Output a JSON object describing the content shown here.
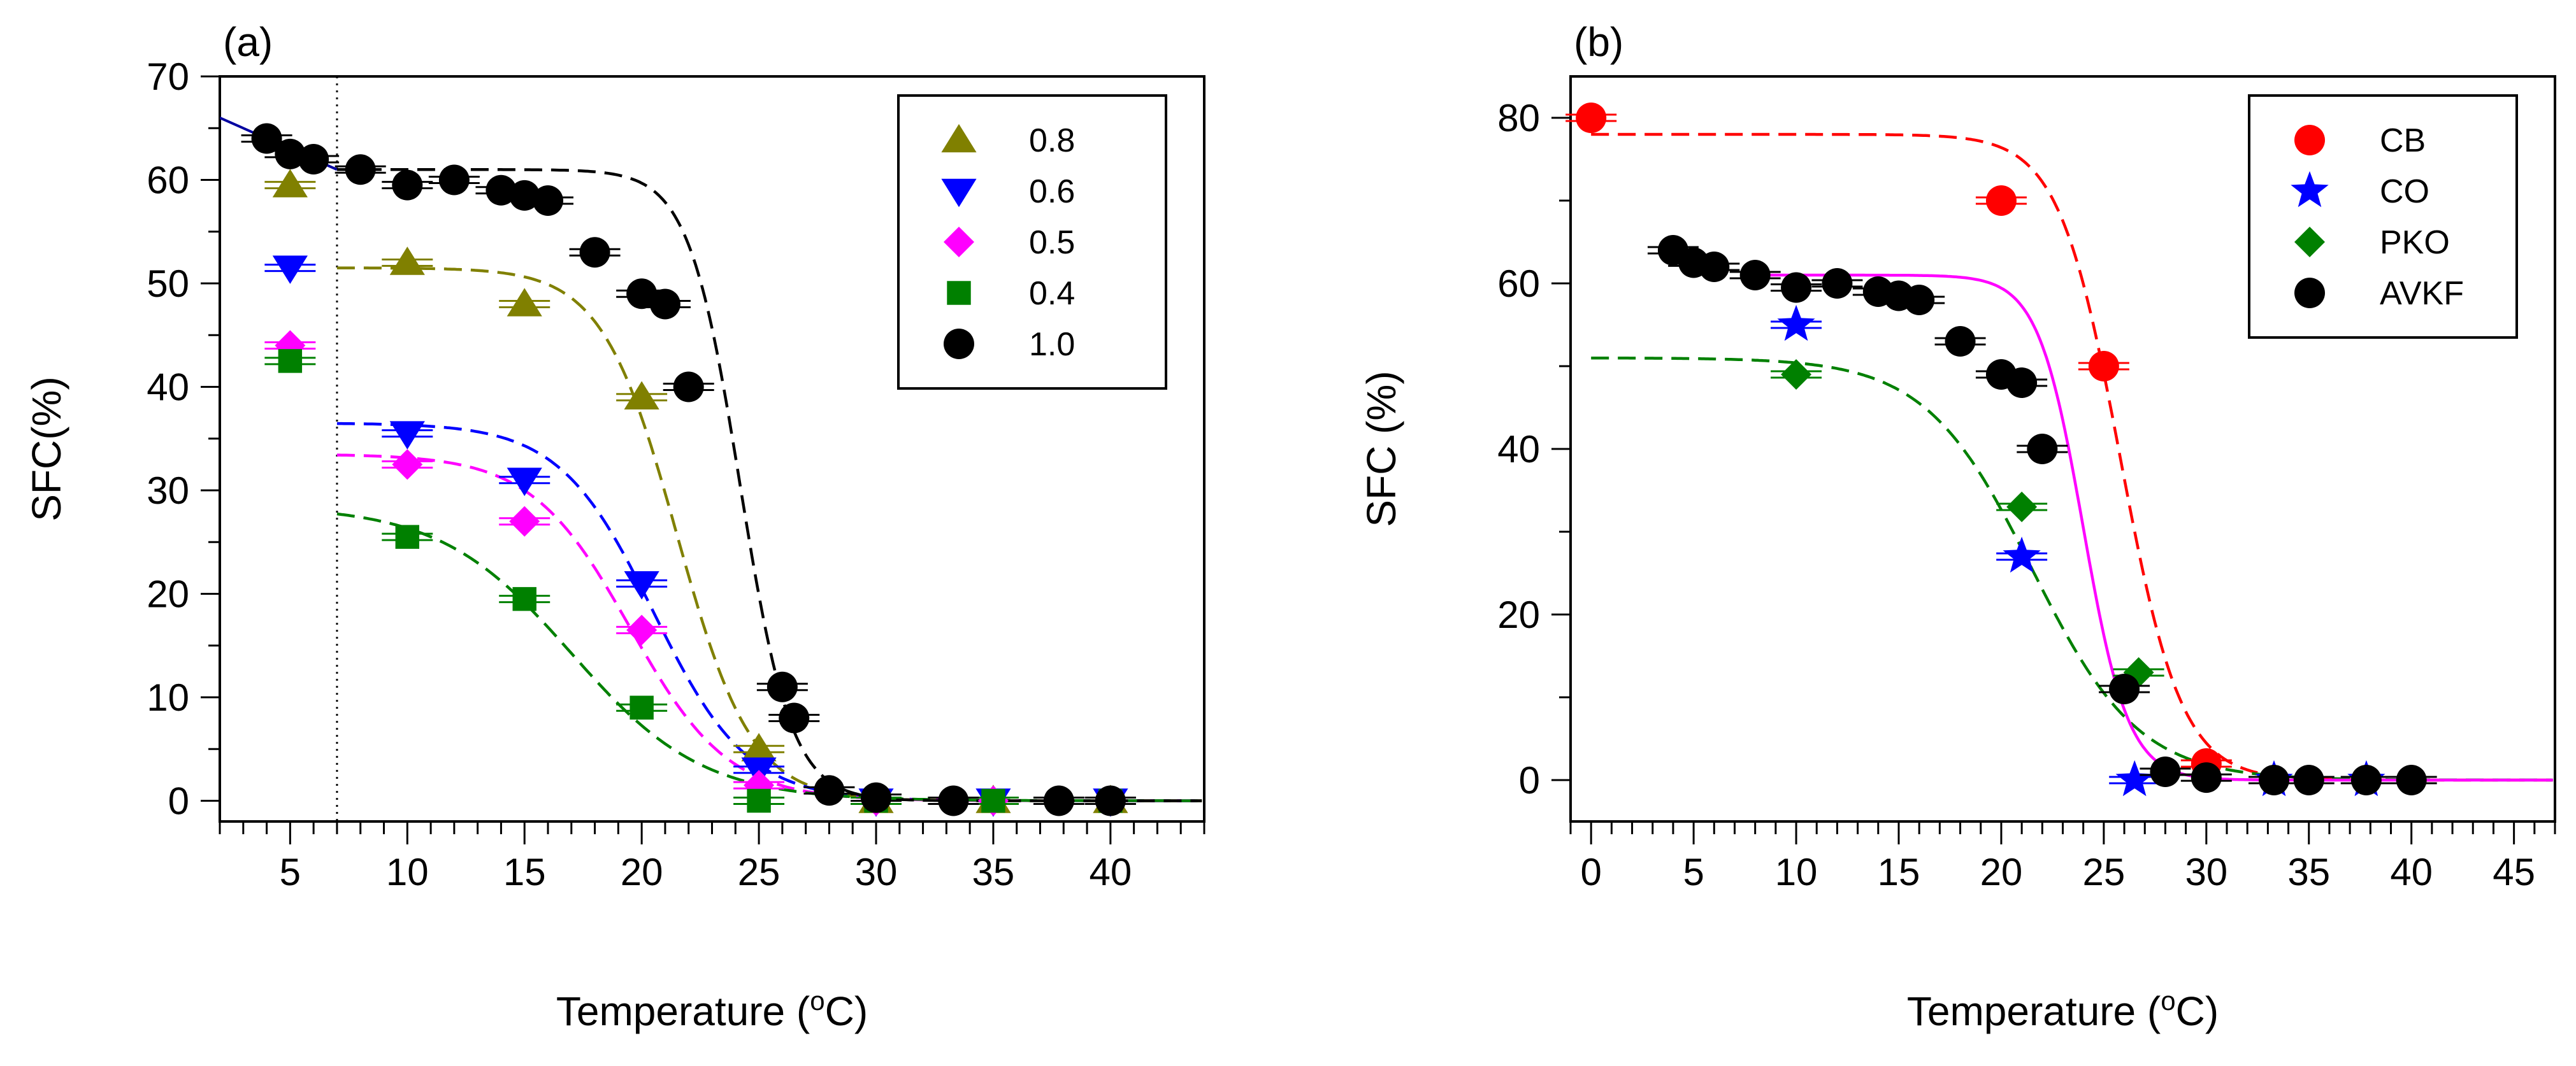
{
  "chart_data": [
    {
      "panel": "(a)",
      "type": "scatter",
      "xlabel": "Temperature (°C)",
      "ylabel": "SFC(%)",
      "xlim": [
        2,
        44
      ],
      "ylim": [
        -2,
        70
      ],
      "xticks": [
        5,
        10,
        15,
        20,
        25,
        30,
        35,
        40
      ],
      "yticks": [
        0,
        10,
        20,
        30,
        40,
        50,
        60,
        70
      ],
      "vline": 7,
      "legend_position": "top-right",
      "series": [
        {
          "name": "0.8",
          "marker": "triangle-up",
          "color": "#808000",
          "x": [
            5,
            10,
            15,
            20,
            25,
            30,
            35,
            40
          ],
          "y": [
            59.5,
            52,
            48,
            39,
            5,
            0,
            0,
            0
          ],
          "fit": {
            "x0": 7,
            "top": 51.5,
            "tc": 21.5,
            "w": 1.6
          }
        },
        {
          "name": "0.6",
          "marker": "triangle-down",
          "color": "#0000ff",
          "x": [
            5,
            10,
            15,
            20,
            25,
            30,
            35,
            40
          ],
          "y": [
            51.5,
            35.5,
            31,
            21,
            3,
            0,
            0,
            0
          ],
          "fit": {
            "x0": 7,
            "top": 36.5,
            "tc": 20.5,
            "w": 2.0
          }
        },
        {
          "name": "0.5",
          "marker": "diamond",
          "color": "#ff00ff",
          "x": [
            5,
            10,
            15,
            20,
            25,
            30,
            35,
            40
          ],
          "y": [
            44,
            32.5,
            27,
            16.5,
            1.5,
            0,
            0,
            0
          ],
          "fit": {
            "x0": 7,
            "top": 33.5,
            "tc": 19.5,
            "w": 2.1
          }
        },
        {
          "name": "0.4",
          "marker": "square",
          "color": "#008000",
          "x": [
            5,
            10,
            15,
            20,
            25,
            30,
            35,
            40
          ],
          "y": [
            42.5,
            25.5,
            19.5,
            9,
            0,
            0,
            0,
            0
          ],
          "fit": {
            "x0": 7,
            "top": 28.5,
            "tc": 17,
            "w": 2.8
          }
        },
        {
          "name": "1.0",
          "marker": "circle",
          "color": "#000000",
          "x": [
            4,
            5,
            6,
            8,
            10,
            12,
            14,
            15,
            16,
            18,
            20,
            21,
            22,
            26,
            26.5,
            28,
            30,
            33.3,
            37.8,
            40
          ],
          "y": [
            64,
            62.5,
            62,
            61,
            59.5,
            60,
            59,
            58.5,
            58,
            53,
            49,
            48,
            40,
            11,
            8,
            1,
            0.3,
            0,
            0,
            0
          ],
          "fit": {
            "x0": 7,
            "top": 61,
            "tc": 24.2,
            "w": 1.1
          }
        }
      ],
      "prefit_line": {
        "color": "#0000a0",
        "x": [
          2,
          7
        ],
        "y": [
          66,
          61
        ]
      }
    },
    {
      "panel": "(b)",
      "type": "scatter",
      "xlabel": "Temperature (°C)",
      "ylabel": "SFC (%)",
      "xlim": [
        -1,
        47
      ],
      "ylim": [
        -5,
        85
      ],
      "xticks": [
        0,
        5,
        10,
        15,
        20,
        25,
        30,
        35,
        40,
        45
      ],
      "yticks": [
        0,
        20,
        40,
        60,
        80
      ],
      "legend_position": "top-right",
      "series": [
        {
          "name": "CB",
          "marker": "circle",
          "color": "#ff0000",
          "x": [
            0,
            20,
            25,
            30
          ],
          "y": [
            80,
            70,
            50,
            2
          ],
          "fit": {
            "x0": 0,
            "top": 78,
            "tc": 25.8,
            "w": 1.5
          }
        },
        {
          "name": "CO",
          "marker": "star",
          "color": "#0000ff",
          "x": [
            10,
            21,
            26.5,
            33.3,
            37.8
          ],
          "y": [
            55,
            27,
            0,
            0,
            0
          ]
        },
        {
          "name": "PKO",
          "marker": "diamond",
          "color": "#008000",
          "x": [
            10,
            21,
            26.7,
            33.3,
            37.8
          ],
          "y": [
            49,
            33,
            13,
            0,
            0
          ],
          "fit": {
            "x0": 0,
            "top": 51,
            "tc": 21.5,
            "w": 2.6
          }
        },
        {
          "name": "AVKF",
          "marker": "circle",
          "color": "#000000",
          "x": [
            4,
            5,
            6,
            8,
            10,
            12,
            14,
            15,
            16,
            18,
            20,
            21,
            22,
            26,
            28,
            30,
            33.3,
            35,
            37.8,
            40
          ],
          "y": [
            64,
            62.5,
            62,
            61,
            59.5,
            60,
            59,
            58.5,
            58,
            53,
            49,
            48,
            40,
            11,
            1,
            0.3,
            0,
            0,
            0,
            0
          ]
        }
      ],
      "extra_fit": {
        "color": "#ff00ff",
        "x0": 8,
        "top": 61,
        "tc": 24,
        "w": 1.1
      }
    }
  ]
}
